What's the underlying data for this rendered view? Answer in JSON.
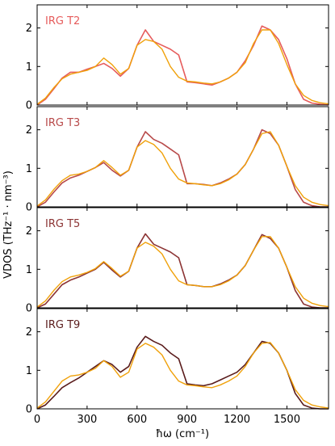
{
  "colors": {
    "model": "#f0a10a",
    "T2": "#e65c5c",
    "T3": "#b84a4a",
    "T5": "#8c3434",
    "T9": "#5a1c1c"
  },
  "chart_data": {
    "type": "line",
    "xlabel": "ħω (cm⁻¹)",
    "ylabel": "VDOS (THz⁻¹ · nm⁻³)",
    "xlim": [
      0,
      1750
    ],
    "ylim": [
      0,
      2.6
    ],
    "xticks": [
      0,
      300,
      600,
      900,
      1200,
      1500
    ],
    "yticks": [
      0,
      1,
      2
    ],
    "x": [
      0,
      50,
      100,
      150,
      200,
      250,
      300,
      350,
      400,
      450,
      500,
      550,
      600,
      650,
      700,
      750,
      800,
      850,
      900,
      950,
      1000,
      1050,
      1100,
      1150,
      1200,
      1250,
      1300,
      1350,
      1400,
      1450,
      1500,
      1550,
      1600,
      1650,
      1700,
      1750
    ],
    "panels": [
      {
        "label": "IRG T2",
        "color_key": "T2",
        "series": [
          {
            "values": [
              0.0,
              0.15,
              0.42,
              0.7,
              0.85,
              0.85,
              0.93,
              1.0,
              1.08,
              0.95,
              0.75,
              0.95,
              1.55,
              1.95,
              1.65,
              1.55,
              1.45,
              1.3,
              0.6,
              0.58,
              0.55,
              0.52,
              0.6,
              0.7,
              0.85,
              1.15,
              1.55,
              2.05,
              1.95,
              1.7,
              1.2,
              0.55,
              0.15,
              0.05,
              0.02,
              0.0
            ]
          },
          {
            "values": [
              0.02,
              0.18,
              0.45,
              0.68,
              0.8,
              0.85,
              0.9,
              1.0,
              1.22,
              1.05,
              0.8,
              0.95,
              1.55,
              1.7,
              1.65,
              1.45,
              1.0,
              0.72,
              0.62,
              0.6,
              0.57,
              0.55,
              0.6,
              0.7,
              0.85,
              1.1,
              1.6,
              1.95,
              1.95,
              1.6,
              1.05,
              0.55,
              0.25,
              0.12,
              0.06,
              0.03
            ]
          }
        ]
      },
      {
        "label": "IRG T3",
        "color_key": "T3",
        "series": [
          {
            "values": [
              0.0,
              0.12,
              0.38,
              0.62,
              0.75,
              0.82,
              0.92,
              1.02,
              1.15,
              0.95,
              0.8,
              0.95,
              1.55,
              1.95,
              1.75,
              1.65,
              1.5,
              1.35,
              0.6,
              0.6,
              0.58,
              0.55,
              0.62,
              0.72,
              0.85,
              1.1,
              1.5,
              2.0,
              1.9,
              1.6,
              1.05,
              0.45,
              0.12,
              0.03,
              0.0,
              0.0
            ]
          },
          {
            "values": [
              0.02,
              0.18,
              0.45,
              0.68,
              0.82,
              0.85,
              0.92,
              1.02,
              1.2,
              1.02,
              0.82,
              0.95,
              1.55,
              1.72,
              1.62,
              1.4,
              1.0,
              0.72,
              0.62,
              0.6,
              0.57,
              0.55,
              0.6,
              0.7,
              0.85,
              1.1,
              1.5,
              1.9,
              1.95,
              1.6,
              1.05,
              0.55,
              0.25,
              0.12,
              0.06,
              0.03
            ]
          }
        ]
      },
      {
        "label": "IRG T5",
        "color_key": "T5",
        "series": [
          {
            "values": [
              0.0,
              0.1,
              0.35,
              0.6,
              0.72,
              0.8,
              0.9,
              1.0,
              1.18,
              0.98,
              0.8,
              0.95,
              1.55,
              1.92,
              1.65,
              1.55,
              1.45,
              1.3,
              0.6,
              0.58,
              0.55,
              0.55,
              0.62,
              0.72,
              0.85,
              1.1,
              1.5,
              1.9,
              1.8,
              1.55,
              1.05,
              0.45,
              0.1,
              0.02,
              0.0,
              0.0
            ]
          },
          {
            "values": [
              0.02,
              0.18,
              0.45,
              0.68,
              0.8,
              0.85,
              0.92,
              1.02,
              1.2,
              1.02,
              0.82,
              0.95,
              1.55,
              1.7,
              1.6,
              1.4,
              1.0,
              0.7,
              0.6,
              0.58,
              0.55,
              0.55,
              0.6,
              0.7,
              0.85,
              1.1,
              1.5,
              1.85,
              1.85,
              1.55,
              1.05,
              0.55,
              0.25,
              0.12,
              0.06,
              0.03
            ]
          }
        ]
      },
      {
        "label": "IRG T9",
        "color_key": "T9",
        "series": [
          {
            "values": [
              0.0,
              0.1,
              0.32,
              0.55,
              0.68,
              0.8,
              0.95,
              1.1,
              1.25,
              1.15,
              0.95,
              1.1,
              1.6,
              1.88,
              1.75,
              1.65,
              1.45,
              1.3,
              0.65,
              0.62,
              0.6,
              0.65,
              0.75,
              0.85,
              0.95,
              1.15,
              1.45,
              1.75,
              1.7,
              1.45,
              1.0,
              0.4,
              0.1,
              0.02,
              0.0,
              0.0
            ]
          },
          {
            "values": [
              0.02,
              0.18,
              0.45,
              0.72,
              0.85,
              0.88,
              0.95,
              1.05,
              1.25,
              1.1,
              0.82,
              0.95,
              1.55,
              1.7,
              1.6,
              1.4,
              1.0,
              0.72,
              0.62,
              0.6,
              0.57,
              0.55,
              0.62,
              0.72,
              0.85,
              1.1,
              1.45,
              1.7,
              1.72,
              1.45,
              1.0,
              0.5,
              0.22,
              0.1,
              0.05,
              0.02
            ]
          }
        ]
      }
    ]
  }
}
